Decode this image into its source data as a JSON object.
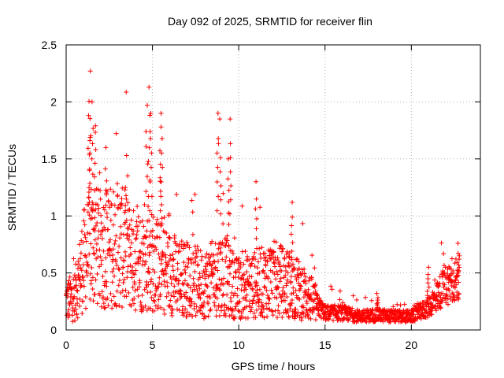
{
  "chart_data": {
    "type": "scatter",
    "title": "Day 092 of 2025, SRMTID for receiver flin",
    "xlabel": "GPS time / hours",
    "ylabel": "SRMTID / TECUs",
    "xlim": [
      0,
      24
    ],
    "ylim": [
      0,
      2.5
    ],
    "x_ticks": [
      0,
      5,
      10,
      15,
      20
    ],
    "x_tick_labels": [
      "0",
      "5",
      "10",
      "15",
      "20"
    ],
    "y_ticks": [
      0,
      0.5,
      1,
      1.5,
      2,
      2.5
    ],
    "y_tick_labels": [
      "0",
      "0.5",
      "1",
      "1.5",
      "2",
      "2.5"
    ],
    "grid": true,
    "marker": "+",
    "series": [
      {
        "name": "SRMTID",
        "color": "#ff0000",
        "envelope": [
          {
            "x": 0.0,
            "y": 0.25
          },
          {
            "x": 0.5,
            "y": 0.3
          },
          {
            "x": 1.0,
            "y": 0.6
          },
          {
            "x": 1.5,
            "y": 0.75
          },
          {
            "x": 2.0,
            "y": 0.7
          },
          {
            "x": 3.0,
            "y": 0.75
          },
          {
            "x": 4.0,
            "y": 0.6
          },
          {
            "x": 5.0,
            "y": 0.6
          },
          {
            "x": 6.0,
            "y": 0.5
          },
          {
            "x": 7.0,
            "y": 0.45
          },
          {
            "x": 8.0,
            "y": 0.4
          },
          {
            "x": 9.0,
            "y": 0.5
          },
          {
            "x": 10.0,
            "y": 0.35
          },
          {
            "x": 11.0,
            "y": 0.4
          },
          {
            "x": 12.0,
            "y": 0.45
          },
          {
            "x": 13.0,
            "y": 0.4
          },
          {
            "x": 14.0,
            "y": 0.3
          },
          {
            "x": 15.0,
            "y": 0.15
          },
          {
            "x": 16.0,
            "y": 0.15
          },
          {
            "x": 17.0,
            "y": 0.12
          },
          {
            "x": 18.0,
            "y": 0.13
          },
          {
            "x": 19.0,
            "y": 0.12
          },
          {
            "x": 20.0,
            "y": 0.12
          },
          {
            "x": 21.0,
            "y": 0.2
          },
          {
            "x": 22.0,
            "y": 0.4
          },
          {
            "x": 22.8,
            "y": 0.45
          }
        ],
        "peaks": [
          {
            "x": 1.4,
            "y": 2.27
          },
          {
            "x": 1.5,
            "y": 2.0
          },
          {
            "x": 1.3,
            "y": 1.88
          },
          {
            "x": 1.7,
            "y": 1.79
          },
          {
            "x": 2.3,
            "y": 1.6
          },
          {
            "x": 3.5,
            "y": 1.53
          },
          {
            "x": 4.8,
            "y": 2.13
          },
          {
            "x": 4.7,
            "y": 1.97
          },
          {
            "x": 4.9,
            "y": 1.9
          },
          {
            "x": 5.5,
            "y": 1.9
          },
          {
            "x": 5.5,
            "y": 1.78
          },
          {
            "x": 8.8,
            "y": 1.9
          },
          {
            "x": 8.9,
            "y": 1.85
          },
          {
            "x": 9.5,
            "y": 1.85
          },
          {
            "x": 9.4,
            "y": 1.5
          },
          {
            "x": 11.0,
            "y": 1.3
          },
          {
            "x": 13.1,
            "y": 1.12
          },
          {
            "x": 18.0,
            "y": 0.32
          },
          {
            "x": 21.0,
            "y": 0.55
          },
          {
            "x": 22.7,
            "y": 0.76
          }
        ]
      }
    ]
  }
}
